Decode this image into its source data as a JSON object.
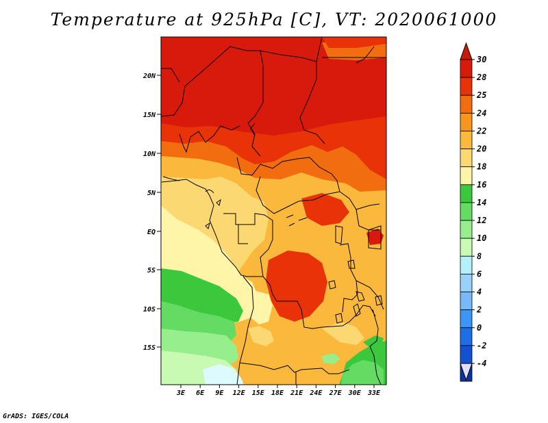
{
  "title": "Temperature at 925hPa [C], VT: 2020061000",
  "credit": "GrADS: IGES/COLA",
  "variable": "Temperature",
  "level": "925hPa",
  "units": "C",
  "valid_time": "2020061000",
  "lat_labels": [
    "20N",
    "15N",
    "10N",
    "5N",
    "EQ",
    "5S",
    "10S",
    "15S"
  ],
  "lon_labels": [
    "3E",
    "6E",
    "9E",
    "12E",
    "15E",
    "18E",
    "21E",
    "24E",
    "27E",
    "30E",
    "33E"
  ],
  "colorbar": {
    "labels": [
      "30",
      "28",
      "25",
      "24",
      "22",
      "20",
      "18",
      "16",
      "14",
      "12",
      "10",
      "8",
      "6",
      "4",
      "2",
      "0",
      "-2",
      "-4"
    ],
    "colors": [
      "#d71a0c",
      "#e83208",
      "#f26c10",
      "#f7961d",
      "#fab93c",
      "#fcd873",
      "#fef5a8",
      "#3cc83c",
      "#64dc64",
      "#96ee8c",
      "#c8fab4",
      "#b4f0fa",
      "#96d2fa",
      "#78b9fa",
      "#3c96f5",
      "#1e6ee6",
      "#1450d2",
      "#0a32a0",
      "#1e1478"
    ],
    "top_color": "#c81a0a",
    "bottom_color": "#e1e1ff"
  },
  "palette": {
    "hot": "#d71a0c",
    "orange_red": "#e83208",
    "orange": "#f26c10",
    "orange_light": "#f7961d",
    "amber": "#fab93c",
    "yellow": "#fcd873",
    "pale_yellow": "#fef5a8",
    "green": "#3cc83c",
    "light_green": "#64dc64",
    "pale_green": "#96ee8c",
    "mint": "#c8fab4",
    "pale_cyan": "#dcfaff",
    "border": "#000000"
  }
}
